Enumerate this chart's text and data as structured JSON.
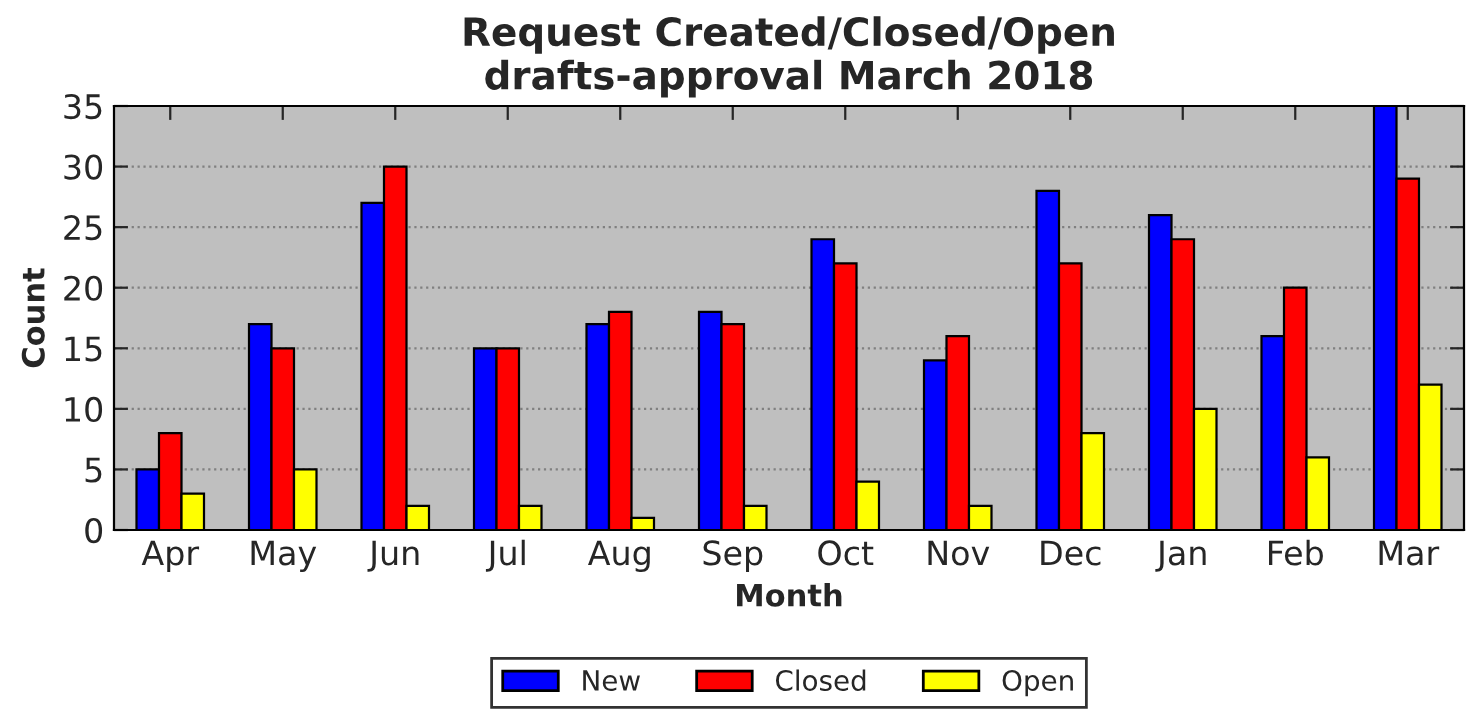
{
  "chart_data": {
    "type": "bar",
    "title": "Request Created/Closed/Open\ndrafts-approval March 2018",
    "xlabel": "Month",
    "ylabel": "Count",
    "categories": [
      "Apr",
      "May",
      "Jun",
      "Jul",
      "Aug",
      "Sep",
      "Oct",
      "Nov",
      "Dec",
      "Jan",
      "Feb",
      "Mar"
    ],
    "series": [
      {
        "name": "New",
        "color": "#0000ff",
        "values": [
          5,
          17,
          27,
          15,
          17,
          18,
          24,
          14,
          28,
          26,
          16,
          35
        ]
      },
      {
        "name": "Closed",
        "color": "#ff0000",
        "values": [
          8,
          15,
          30,
          15,
          18,
          17,
          22,
          16,
          22,
          24,
          20,
          29
        ]
      },
      {
        "name": "Open",
        "color": "#ffff00",
        "values": [
          3,
          5,
          2,
          2,
          1,
          2,
          4,
          2,
          8,
          10,
          6,
          12
        ]
      }
    ],
    "ylim": [
      0,
      35
    ],
    "yticks": [
      0,
      5,
      10,
      15,
      20,
      25,
      30,
      35
    ],
    "grid": "y",
    "legend": "bottom"
  }
}
